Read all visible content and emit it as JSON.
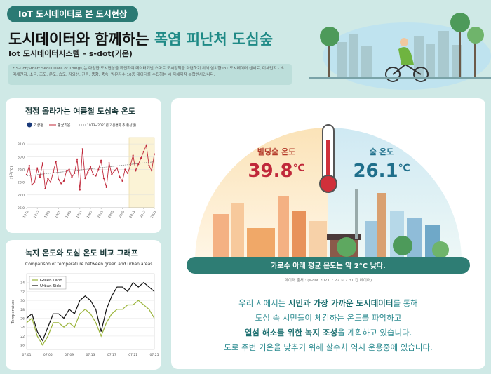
{
  "header": {
    "badge": "IoT 도시데이터로 본 도시현상",
    "title": "도시데이터와 함께하는 ",
    "title_highlight": "폭염 피난처 도심숲",
    "subtitle": "Iot 도시데이터시스템 – s-dot(기온)",
    "note": "* S-Dot(Smart Seoul Data of Things)는 다양한 도시현상을 확인하여 데이터기반 스마트 도시정책을 마련하기 위해 설치한 IoT 도시데이터 센서로, 미세먼지 · 초미세먼지, 소음, 조도, 온도, 습도, 자외선, 진동, 풍향, 풍속, 방문자수 10종 데이터를 수집하는 시 자체제작 복합센서입니다."
  },
  "chart_data": [
    {
      "type": "line",
      "title": "점점 올라가는 여름철 도심속 온도",
      "logo": "기상청",
      "y_label": "기온(℃)",
      "color": "#c0283a",
      "series_name": "평균기온",
      "x": [
        1973,
        1974,
        1975,
        1976,
        1977,
        1978,
        1979,
        1980,
        1981,
        1982,
        1983,
        1984,
        1985,
        1986,
        1987,
        1988,
        1989,
        1990,
        1991,
        1992,
        1993,
        1994,
        1995,
        1996,
        1997,
        1998,
        1999,
        2000,
        2001,
        2002,
        2003,
        2004,
        2005,
        2006,
        2007,
        2008,
        2009,
        2010,
        2011,
        2012,
        2013,
        2014,
        2015,
        2016,
        2017,
        2018,
        2019,
        2020,
        2021
      ],
      "values": [
        28.6,
        29.3,
        27.8,
        28.0,
        29.1,
        28.4,
        29.5,
        27.5,
        28.3,
        28.0,
        28.8,
        29.6,
        28.2,
        27.9,
        28.1,
        28.9,
        29.0,
        28.4,
        28.7,
        29.8,
        27.4,
        30.6,
        28.3,
        28.8,
        29.2,
        28.6,
        28.5,
        29.0,
        29.7,
        28.3,
        27.6,
        29.5,
        28.6,
        28.9,
        29.1,
        28.4,
        28.1,
        29.0,
        28.7,
        29.3,
        30.1,
        28.9,
        29.4,
        29.9,
        30.4,
        30.9,
        29.3,
        28.9,
        30.2
      ],
      "trend": {
        "name": "1973~2021년 기온변화 추세(선형)",
        "color": "#888888",
        "x": [
          1973,
          2021
        ],
        "values": [
          28.5,
          29.6
        ]
      },
      "highlight_x": [
        2011.5,
        2021
      ],
      "xlim": [
        1973,
        2021
      ],
      "xticks": [
        1973,
        1977,
        1981,
        1985,
        1989,
        1993,
        1997,
        2001,
        2005,
        2009,
        2013,
        2017,
        2021
      ],
      "ylim": [
        26,
        31.5
      ],
      "yticks": [
        {
          "value": 26,
          "label": "26.0"
        },
        {
          "value": 27,
          "label": "27.0"
        },
        {
          "value": 28,
          "label": "28.0"
        },
        {
          "value": 29,
          "label": "29.0"
        },
        {
          "value": 30,
          "label": "30.0"
        },
        {
          "value": 31,
          "label": "31.0"
        }
      ],
      "grid": true
    },
    {
      "type": "line",
      "title": "녹지 온도와 도심 온도 비교 그래프",
      "subtitle": "Comparison of temperature between green and urban areas",
      "y_label": "Temperature",
      "categories": [
        "07.01",
        null,
        null,
        null,
        "07.05",
        null,
        null,
        null,
        "07.09",
        null,
        null,
        null,
        "07.13",
        null,
        null,
        null,
        "07.17",
        null,
        null,
        null,
        "07.21",
        null,
        null,
        null,
        "07.25"
      ],
      "series": [
        {
          "name": "Green Land",
          "color": "#9ab43a",
          "values": [
            25,
            26,
            22,
            20,
            22,
            25,
            25,
            24,
            25,
            24,
            27,
            28,
            27,
            25,
            22,
            25,
            27,
            28,
            28,
            29,
            29,
            30,
            29,
            28,
            26
          ]
        },
        {
          "name": "Urban Side",
          "color": "#111111",
          "values": [
            26,
            27,
            23,
            21,
            24,
            27,
            27,
            26,
            28,
            27,
            30,
            31,
            30,
            28,
            23,
            28,
            31,
            33,
            33,
            32,
            34,
            33,
            34,
            33,
            32
          ]
        }
      ],
      "ylim": [
        19,
        36
      ],
      "yticks": [
        20,
        22,
        24,
        26,
        28,
        30,
        32,
        34
      ],
      "grid": true,
      "legend": "top-left"
    }
  ],
  "infographic": {
    "building_label": "빌딩숲 온도",
    "building_value": 39.8,
    "forest_label": "숲 온도",
    "forest_value": 26.1,
    "unit": "℃",
    "banner": "가로수 아래 평균 온도는 약 2°C 낮다.",
    "source": "데이터 출처 : (s-dot 2021.7.22 ~ 7.31 간 데이터)"
  },
  "body": [
    [
      {
        "text": "우리 시에서는 ",
        "bold": false
      },
      {
        "text": "시민과 가장 가까운 도시데이터",
        "bold": true
      },
      {
        "text": "를 통해",
        "bold": false
      }
    ],
    [
      {
        "text": "도심 속 시민들이 체감하는 온도를 파악하고",
        "bold": false
      }
    ],
    [
      {
        "text": "열섬 해소를 위한 녹지 조성",
        "bold": true
      },
      {
        "text": "을 계획하고 있습니다.",
        "bold": false
      }
    ],
    [
      {
        "text": "도로 주변 기온을 낮추기 위해 살수차 역시 운용중에 있습니다.",
        "bold": false
      }
    ]
  ]
}
